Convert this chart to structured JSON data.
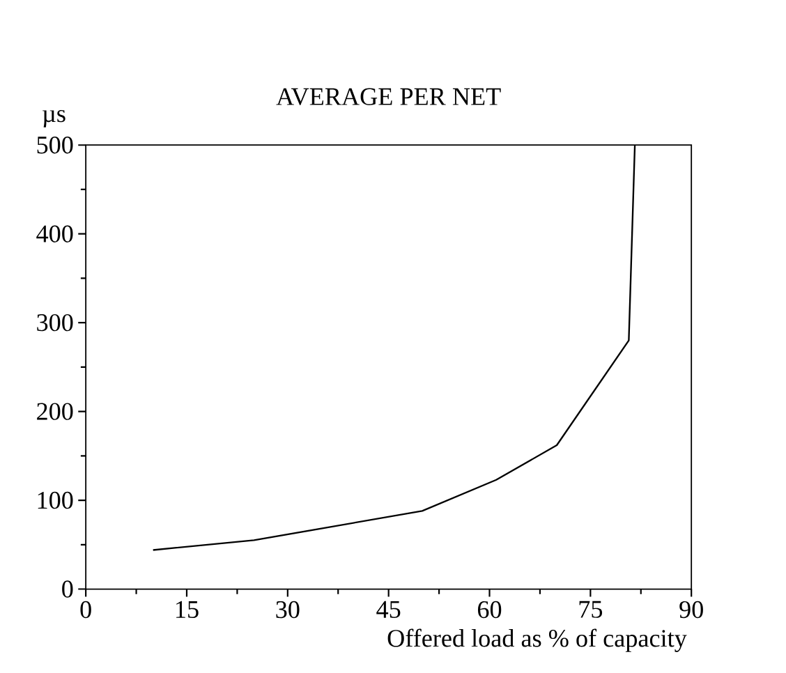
{
  "chart_data": {
    "type": "line",
    "title": "AVERAGE PER NET",
    "ylabel": "µs",
    "xlabel": "Offered load as % of capacity",
    "x": [
      10,
      25,
      50,
      61,
      70,
      80.7,
      81.6
    ],
    "series": [
      {
        "color": "#000000",
        "values": [
          44,
          55,
          88,
          123,
          162,
          280,
          500
        ]
      }
    ],
    "xlim": [
      0,
      90
    ],
    "ylim": [
      0,
      500
    ],
    "xticks": [
      0,
      15,
      30,
      45,
      60,
      75,
      90
    ],
    "yticks": [
      0,
      100,
      200,
      300,
      400,
      500
    ],
    "grid": false,
    "marker": "none",
    "line_style": "solid"
  }
}
